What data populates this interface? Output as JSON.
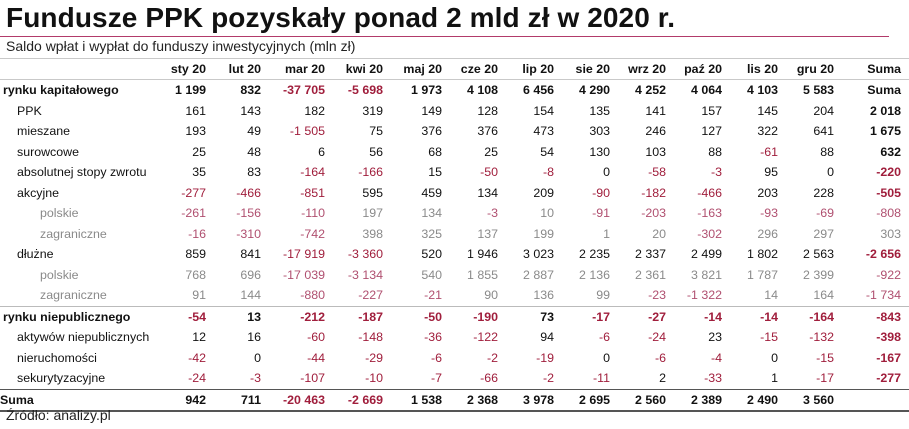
{
  "title": "Fundusze PPK pozyskały ponad 2 mld zł w 2020 r.",
  "subtitle": "Saldo wpłat i wypłat do funduszy inwestycyjnych (mln zł)",
  "source": "Źródło: analizy.pl",
  "columns": [
    "sty 20",
    "lut 20",
    "mar 20",
    "kwi 20",
    "maj 20",
    "cze 20",
    "lip 20",
    "sie 20",
    "wrz 20",
    "paź 20",
    "lis 20",
    "gru 20",
    "Suma"
  ],
  "rows": [
    {
      "label": "rynku kapitałowego",
      "level": 0,
      "values": [
        "1 199",
        "832",
        "-37 705",
        "-5 698",
        "1 973",
        "4 108",
        "6 456",
        "4 290",
        "4 252",
        "4 064",
        "4 103",
        "5 583",
        "Suma"
      ]
    },
    {
      "label": "PPK",
      "level": 1,
      "values": [
        "161",
        "143",
        "182",
        "319",
        "149",
        "128",
        "154",
        "135",
        "141",
        "157",
        "145",
        "204",
        "2 018"
      ]
    },
    {
      "label": "mieszane",
      "level": 1,
      "values": [
        "193",
        "49",
        "-1 505",
        "75",
        "376",
        "376",
        "473",
        "303",
        "246",
        "127",
        "322",
        "641",
        "1 675"
      ]
    },
    {
      "label": "surowcowe",
      "level": 1,
      "values": [
        "25",
        "48",
        "6",
        "56",
        "68",
        "25",
        "54",
        "130",
        "103",
        "88",
        "-61",
        "88",
        "632"
      ]
    },
    {
      "label": "absolutnej stopy zwrotu",
      "level": 1,
      "values": [
        "35",
        "83",
        "-164",
        "-166",
        "15",
        "-50",
        "-8",
        "0",
        "-58",
        "-3",
        "95",
        "0",
        "-220"
      ]
    },
    {
      "label": "akcyjne",
      "level": 1,
      "values": [
        "-277",
        "-466",
        "-851",
        "595",
        "459",
        "134",
        "209",
        "-90",
        "-182",
        "-466",
        "203",
        "228",
        "-505"
      ]
    },
    {
      "label": "polskie",
      "level": 2,
      "values": [
        "-261",
        "-156",
        "-110",
        "197",
        "134",
        "-3",
        "10",
        "-91",
        "-203",
        "-163",
        "-93",
        "-69",
        "-808"
      ]
    },
    {
      "label": "zagraniczne",
      "level": 2,
      "values": [
        "-16",
        "-310",
        "-742",
        "398",
        "325",
        "137",
        "199",
        "1",
        "20",
        "-302",
        "296",
        "297",
        "303"
      ]
    },
    {
      "label": "dłużne",
      "level": 1,
      "values": [
        "859",
        "841",
        "-17 919",
        "-3 360",
        "520",
        "1 946",
        "3 023",
        "2 235",
        "2 337",
        "2 499",
        "1 802",
        "2 563",
        "-2 656"
      ]
    },
    {
      "label": "polskie",
      "level": 2,
      "values": [
        "768",
        "696",
        "-17 039",
        "-3 134",
        "540",
        "1 855",
        "2 887",
        "2 136",
        "2 361",
        "3 821",
        "1 787",
        "2 399",
        "-922"
      ]
    },
    {
      "label": "zagraniczne",
      "level": 2,
      "values": [
        "91",
        "144",
        "-880",
        "-227",
        "-21",
        "90",
        "136",
        "99",
        "-23",
        "-1 322",
        "14",
        "164",
        "-1 734"
      ]
    },
    {
      "label": "rynku niepublicznego",
      "level": 0,
      "values": [
        "-54",
        "13",
        "-212",
        "-187",
        "-50",
        "-190",
        "73",
        "-17",
        "-27",
        "-14",
        "-14",
        "-164",
        "-843"
      ]
    },
    {
      "label": "aktywów niepublicznych",
      "level": 1,
      "values": [
        "12",
        "16",
        "-60",
        "-148",
        "-36",
        "-122",
        "94",
        "-6",
        "-24",
        "23",
        "-15",
        "-132",
        "-398"
      ]
    },
    {
      "label": "nieruchomości",
      "level": 1,
      "values": [
        "-42",
        "0",
        "-44",
        "-29",
        "-6",
        "-2",
        "-19",
        "0",
        "-6",
        "-4",
        "0",
        "-15",
        "-167"
      ]
    },
    {
      "label": "sekurytyzacyjne",
      "level": 1,
      "values": [
        "-24",
        "-3",
        "-107",
        "-10",
        "-7",
        "-66",
        "-2",
        "-11",
        "2",
        "-33",
        "1",
        "-17",
        "-277"
      ]
    },
    {
      "label": "Suma",
      "level": "total",
      "values": [
        "942",
        "711",
        "-20 463",
        "-2 669",
        "1 538",
        "2 368",
        "3 978",
        "2 695",
        "2 560",
        "2 389",
        "2 490",
        "3 560",
        ""
      ]
    }
  ]
}
